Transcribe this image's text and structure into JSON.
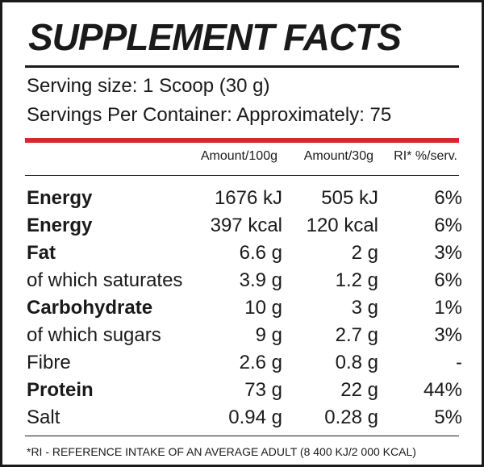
{
  "title": "SUPPLEMENT FACTS",
  "serving_size": "Serving size: 1 Scoop (30 g)",
  "servings_per_container": "Servings Per Container: Approximately: 75",
  "accent_color": "#d8262b",
  "columns": {
    "per_100g": "Amount/100g",
    "per_30g": "Amount/30g",
    "ri": "RI* %/serv."
  },
  "rows": [
    {
      "name": "Energy",
      "bold": true,
      "per_100g": "1676 kJ",
      "per_30g": "505 kJ",
      "ri": "6%"
    },
    {
      "name": "Energy",
      "bold": true,
      "per_100g": "397 kcal",
      "per_30g": "120 kcal",
      "ri": "6%"
    },
    {
      "name": "Fat",
      "bold": true,
      "per_100g": "6.6 g",
      "per_30g": "2 g",
      "ri": "3%"
    },
    {
      "name": "of which saturates",
      "bold": false,
      "per_100g": "3.9 g",
      "per_30g": "1.2 g",
      "ri": "6%"
    },
    {
      "name": "Carbohydrate",
      "bold": true,
      "per_100g": "10 g",
      "per_30g": "3 g",
      "ri": "1%"
    },
    {
      "name": "of which sugars",
      "bold": false,
      "per_100g": "9 g",
      "per_30g": "2.7 g",
      "ri": "3%"
    },
    {
      "name": "Fibre",
      "bold": false,
      "per_100g": "2.6 g",
      "per_30g": "0.8 g",
      "ri": "-"
    },
    {
      "name": "Protein",
      "bold": true,
      "per_100g": "73 g",
      "per_30g": "22 g",
      "ri": "44%"
    },
    {
      "name": "Salt",
      "bold": false,
      "per_100g": "0.94 g",
      "per_30g": "0.28 g",
      "ri": "5%"
    }
  ],
  "footnote": "*RI - REFERENCE INTAKE OF AN AVERAGE ADULT (8 400 KJ/2 000 KCAL)"
}
